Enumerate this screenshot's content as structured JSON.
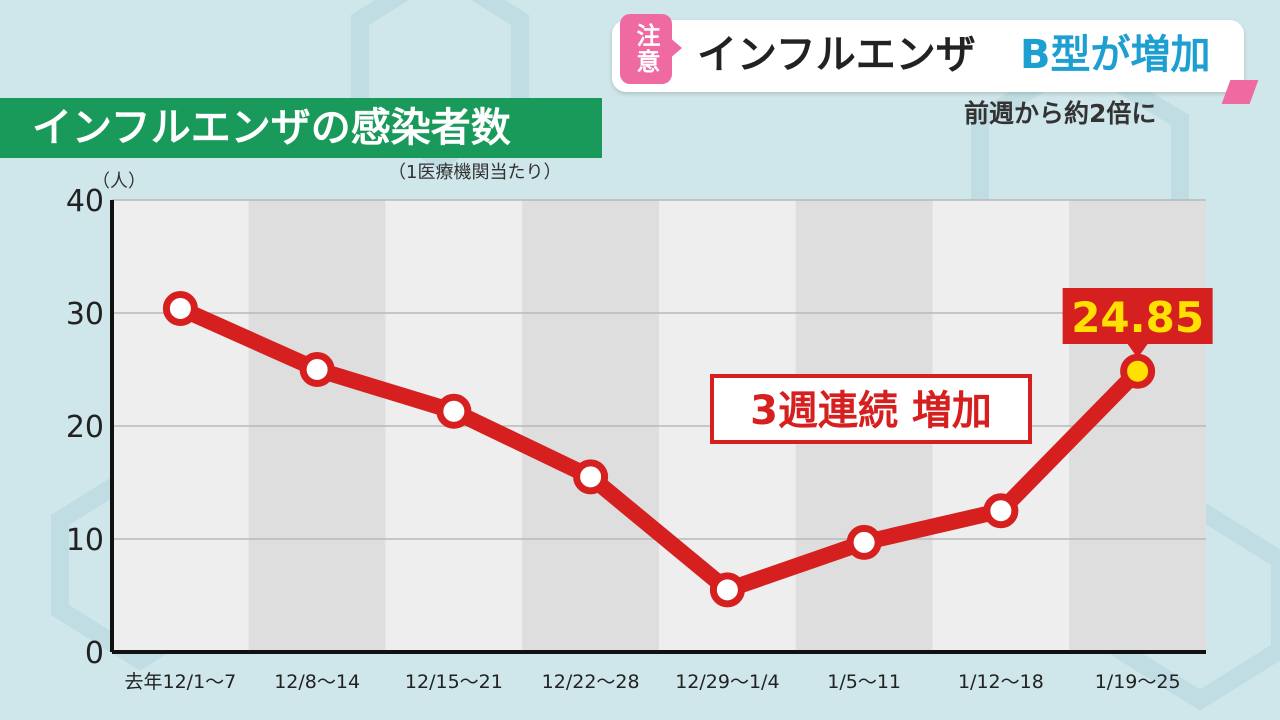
{
  "banner": {
    "tag": "注意",
    "title": "インフルエンザ",
    "title_accent": "B型が増加",
    "subtitle": "前週から約2倍に"
  },
  "colors": {
    "line": "#d61f1f",
    "title_bg": "#1a9a5a",
    "accent_blue": "#1e9fd2",
    "tag_pink": "#ee6aa0",
    "callout_bg": "#d61f1f",
    "callout_text": "#ffe000"
  },
  "chart_data": {
    "type": "line",
    "title": "インフルエンザの感染者数",
    "subtitle": "（1医療機関当たり）",
    "ylabel": "（人）",
    "ylim": [
      0,
      40
    ],
    "yticks": [
      0,
      10,
      20,
      30,
      40
    ],
    "grid": true,
    "categories": [
      "去年12/1～7",
      "12/8～14",
      "12/15～21",
      "12/22～28",
      "12/29～1/4",
      "1/5～11",
      "1/12～18",
      "1/19～25"
    ],
    "values": [
      30.4,
      25.0,
      21.3,
      15.5,
      5.5,
      9.7,
      12.5,
      24.85
    ],
    "data_label": "24.85",
    "annotation": "3週連続 増加"
  }
}
